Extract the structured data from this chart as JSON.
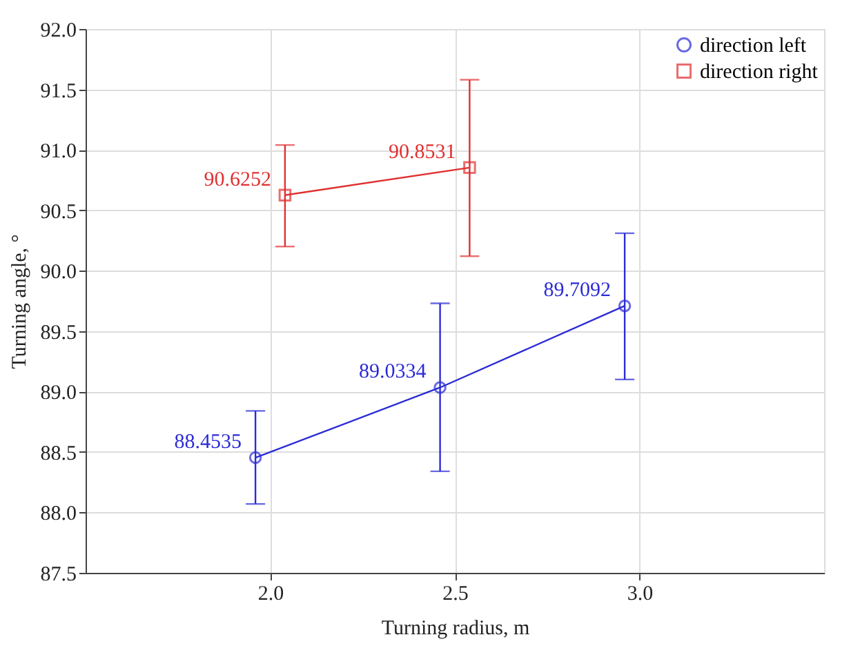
{
  "chart_data": {
    "type": "line",
    "xlabel": "Turning radius, m",
    "ylabel": "Turning angle, °",
    "xlim": [
      1.5,
      3.5
    ],
    "xticks": [
      {
        "value": 2,
        "label": "2.0"
      },
      2.5,
      {
        "value": 3,
        "label": "3.0"
      }
    ],
    "ylim": [
      87.5,
      92
    ],
    "yticks": [
      {
        "value": 87.5,
        "label": "87.5"
      },
      {
        "value": 88,
        "label": "88.0"
      },
      {
        "value": 88.5,
        "label": "88.5"
      },
      {
        "value": 89,
        "label": "89.0"
      },
      {
        "value": 89.5,
        "label": "89.5"
      },
      {
        "value": 90,
        "label": "90.0"
      },
      {
        "value": 90.5,
        "label": "90.5"
      },
      {
        "value": 91,
        "label": "91.0"
      },
      {
        "value": 91.5,
        "label": "91.5"
      },
      {
        "value": 92,
        "label": "92.0"
      }
    ],
    "grid": true,
    "legend": "top right",
    "data_labels": true,
    "line_style": "solid",
    "series": [
      {
        "name": "direction left",
        "color": "#2b2bd6",
        "marker": "circle",
        "x": [
          1.96,
          2.46,
          2.96
        ],
        "values": [
          88.4535,
          89.0334,
          89.7092
        ],
        "errors": [
          [
            88.07,
            88.84
          ],
          [
            88.34,
            89.73
          ],
          [
            89.1,
            90.31
          ]
        ]
      },
      {
        "name": "direction right",
        "color": "#e03030",
        "marker": "square",
        "x": [
          2.04,
          2.54
        ],
        "values": [
          90.6252,
          90.8531
        ],
        "errors": [
          [
            90.2,
            91.04
          ],
          [
            90.12,
            91.58
          ]
        ]
      }
    ]
  }
}
